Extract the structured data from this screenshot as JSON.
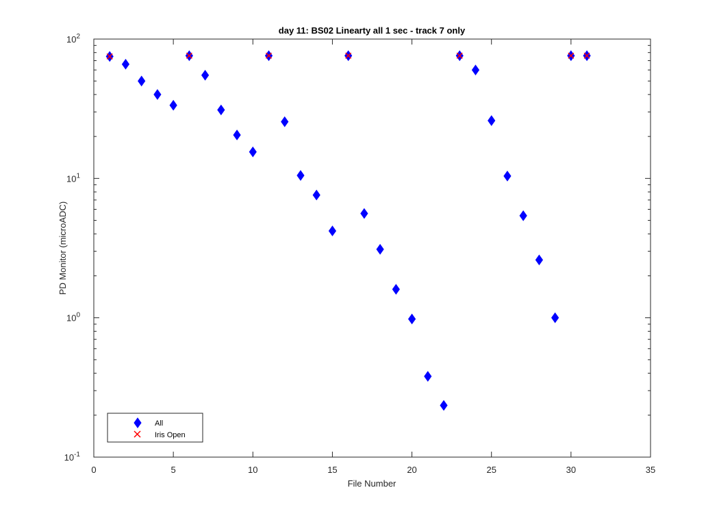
{
  "chart_data": {
    "type": "scatter",
    "title": "day 11: BS02   Linearty all 1 sec - track 7 only",
    "xlabel": "File Number",
    "ylabel": "PD Monitor (microADC)",
    "xlim": [
      0,
      35
    ],
    "ylim": [
      0.1,
      100
    ],
    "yscale": "log",
    "grid": false,
    "legend_position": "bottom-left",
    "x_ticks": [
      "0",
      "5",
      "10",
      "15",
      "20",
      "25",
      "30",
      "35"
    ],
    "y_ticks": [
      {
        "base": "10",
        "exp": "-1"
      },
      {
        "base": "10",
        "exp": "0"
      },
      {
        "base": "10",
        "exp": "1"
      },
      {
        "base": "10",
        "exp": "2"
      }
    ],
    "series": [
      {
        "name": "All",
        "marker": "diamond",
        "color": "#0000ff",
        "x": [
          1,
          2,
          3,
          4,
          5,
          6,
          7,
          8,
          9,
          10,
          11,
          12,
          13,
          14,
          15,
          16,
          17,
          18,
          19,
          20,
          21,
          22,
          23,
          24,
          25,
          26,
          27,
          28,
          29,
          30,
          31
        ],
        "y": [
          75,
          66,
          50,
          40,
          33.5,
          76,
          55,
          31,
          20.5,
          15.5,
          76,
          25.5,
          10.5,
          7.6,
          4.2,
          76,
          5.6,
          3.1,
          1.6,
          0.98,
          0.38,
          0.235,
          76,
          60,
          26,
          10.4,
          5.4,
          2.6,
          1.0,
          76,
          76
        ]
      },
      {
        "name": "Iris Open",
        "marker": "x",
        "color": "#ff0000",
        "x": [
          1,
          6,
          11,
          16,
          23,
          30,
          31
        ],
        "y": [
          75,
          76,
          76,
          76,
          76,
          76,
          76
        ]
      }
    ]
  }
}
